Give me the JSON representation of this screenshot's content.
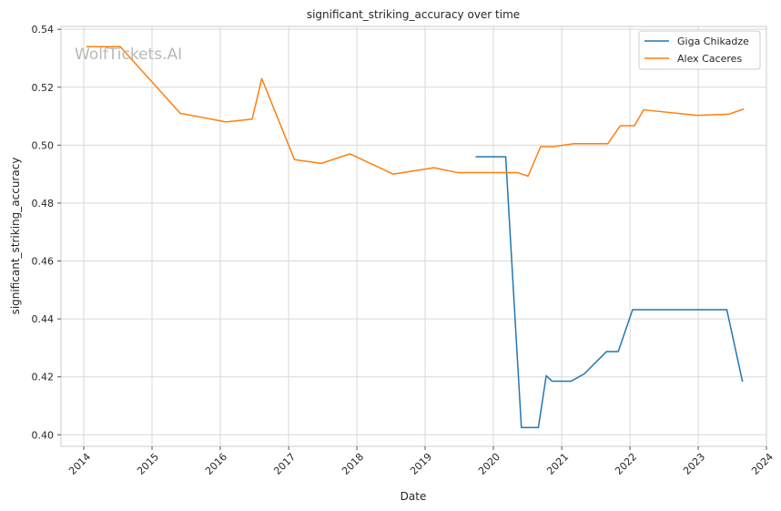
{
  "watermark": "WolfTickets.AI",
  "chart_data": {
    "type": "line",
    "title": "significant_striking_accuracy over time",
    "xlabel": "Date",
    "ylabel": "significant_striking_accuracy",
    "xlim": [
      "2013-09-01",
      "2024-01-01"
    ],
    "ylim": [
      0.396,
      0.541
    ],
    "x_ticks": [
      "2014-01-01",
      "2015-01-01",
      "2016-01-01",
      "2017-01-01",
      "2018-01-01",
      "2019-01-01",
      "2020-01-01",
      "2021-01-01",
      "2022-01-01",
      "2023-01-01",
      "2024-01-01"
    ],
    "x_tick_labels": [
      "2014",
      "2015",
      "2016",
      "2017",
      "2018",
      "2019",
      "2020",
      "2021",
      "2022",
      "2023",
      "2024"
    ],
    "y_ticks": [
      0.4,
      0.42,
      0.44,
      0.46,
      0.48,
      0.5,
      0.52,
      0.54
    ],
    "y_tick_labels": [
      "0.40",
      "0.42",
      "0.44",
      "0.46",
      "0.48",
      "0.50",
      "0.52",
      "0.54"
    ],
    "grid": true,
    "legend_position": "top-right",
    "series": [
      {
        "name": "Giga Chikadze",
        "color": "#1f77b4",
        "points": [
          [
            "2019-09-28",
            0.496
          ],
          [
            "2020-03-07",
            0.496
          ],
          [
            "2020-05-30",
            0.4025
          ],
          [
            "2020-08-29",
            0.4025
          ],
          [
            "2020-10-10",
            0.4204
          ],
          [
            "2020-11-10",
            0.4185
          ],
          [
            "2021-02-20",
            0.4185
          ],
          [
            "2021-05-01",
            0.421
          ],
          [
            "2021-08-28",
            0.4287
          ],
          [
            "2021-10-30",
            0.4287
          ],
          [
            "2022-01-15",
            0.4432
          ],
          [
            "2023-06-03",
            0.4432
          ],
          [
            "2023-08-26",
            0.4183
          ]
        ]
      },
      {
        "name": "Alex Caceres",
        "color": "#ff7f0e",
        "points": [
          [
            "2014-01-15",
            0.534
          ],
          [
            "2014-07-15",
            0.534
          ],
          [
            "2015-06-01",
            0.511
          ],
          [
            "2016-02-01",
            0.508
          ],
          [
            "2016-06-20",
            0.509
          ],
          [
            "2016-08-10",
            0.523
          ],
          [
            "2017-02-01",
            0.495
          ],
          [
            "2017-06-25",
            0.4937
          ],
          [
            "2017-11-25",
            0.497
          ],
          [
            "2018-07-15",
            0.49
          ],
          [
            "2019-02-17",
            0.4922
          ],
          [
            "2019-06-25",
            0.4905
          ],
          [
            "2020-05-10",
            0.4905
          ],
          [
            "2020-07-05",
            0.4893
          ],
          [
            "2020-09-10",
            0.4995
          ],
          [
            "2020-11-20",
            0.4995
          ],
          [
            "2021-03-05",
            0.5005
          ],
          [
            "2021-09-04",
            0.5005
          ],
          [
            "2021-11-10",
            0.5067
          ],
          [
            "2022-01-25",
            0.5067
          ],
          [
            "2022-03-15",
            0.5122
          ],
          [
            "2022-12-25",
            0.5103
          ],
          [
            "2023-06-15",
            0.5107
          ],
          [
            "2023-09-02",
            0.5125
          ]
        ]
      }
    ]
  }
}
